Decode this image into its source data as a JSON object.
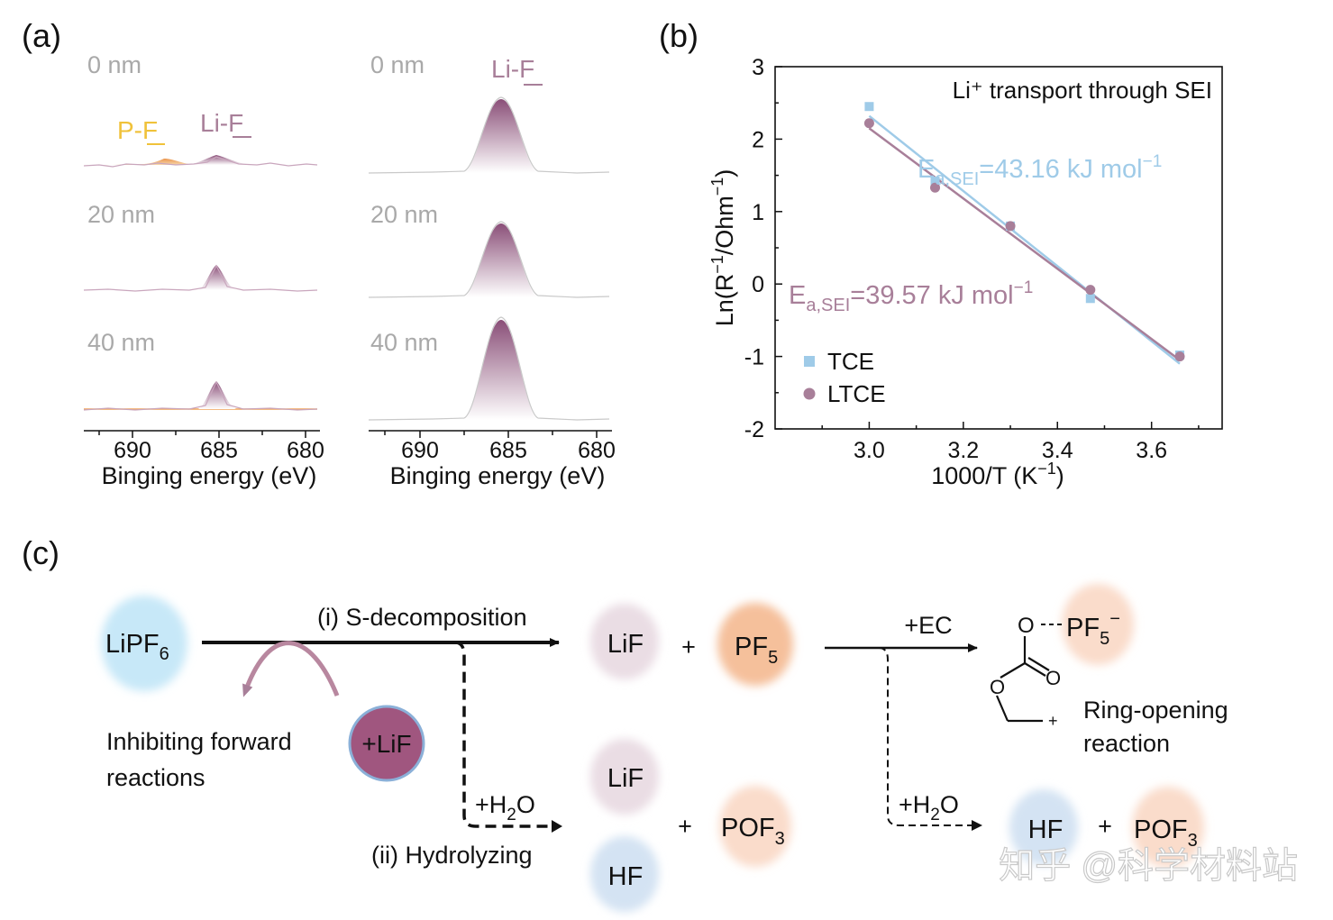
{
  "panel_a": {
    "label": "(a)",
    "left": {
      "depth_labels": [
        "0 nm",
        "20 nm",
        "40 nm"
      ],
      "peak_lif": "Li-F",
      "peak_pf": "P-F",
      "x_ticks": [
        "690",
        "685",
        "680"
      ],
      "xlabel": "Binging energy (eV)"
    },
    "right": {
      "depth_labels": [
        "0 nm",
        "20 nm",
        "40 nm"
      ],
      "peak_lif": "Li-F",
      "x_ticks": [
        "690",
        "685",
        "680"
      ],
      "xlabel": "Binging energy (eV)"
    }
  },
  "panel_b": {
    "label": "(b)",
    "title": "Li⁺ transport  through  SEI",
    "xlabel": "1000/T (K⁻¹)",
    "ylabel": "Ln(R⁻¹/Ohm⁻¹)",
    "x_ticks": [
      "3.0",
      "3.2",
      "3.4",
      "3.6"
    ],
    "y_ticks": [
      "3",
      "2",
      "1",
      "0",
      "-1",
      "-2"
    ],
    "annotation_tce": "Ea,SEI=43.16 kJ mol⁻¹",
    "annotation_ltce": "Ea,SEI=39.57 kJ mol⁻¹",
    "legend": [
      "TCE",
      "LTCE"
    ],
    "colors": {
      "tce": "#9fcbe8",
      "ltce": "#a87f99"
    }
  },
  "chart_data": [
    {
      "type": "line",
      "panel": "a-left",
      "xlabel": "Binging energy (eV)",
      "xlim": [
        693,
        678
      ],
      "x_ticks": [
        690,
        685,
        680
      ],
      "series": [
        {
          "name": "0 nm",
          "peaks": [
            {
              "label": "P-F",
              "center": 689,
              "rel_height": 0.15
            },
            {
              "label": "Li-F",
              "center": 685,
              "rel_height": 0.18
            }
          ]
        },
        {
          "name": "20 nm",
          "peaks": [
            {
              "label": "Li-F",
              "center": 685,
              "rel_height": 0.4
            }
          ]
        },
        {
          "name": "40 nm",
          "peaks": [
            {
              "label": "Li-F",
              "center": 685,
              "rel_height": 0.45
            }
          ]
        }
      ]
    },
    {
      "type": "line",
      "panel": "a-right",
      "xlabel": "Binging energy (eV)",
      "xlim": [
        693,
        678
      ],
      "x_ticks": [
        690,
        685,
        680
      ],
      "series": [
        {
          "name": "0 nm",
          "peaks": [
            {
              "label": "Li-F",
              "center": 685,
              "rel_height": 1.0
            }
          ]
        },
        {
          "name": "20 nm",
          "peaks": [
            {
              "label": "Li-F",
              "center": 685,
              "rel_height": 1.0
            }
          ]
        },
        {
          "name": "40 nm",
          "peaks": [
            {
              "label": "Li-F",
              "center": 685,
              "rel_height": 1.0
            }
          ]
        }
      ]
    },
    {
      "type": "scatter",
      "panel": "b",
      "title": "Li⁺ transport  through  SEI",
      "xlabel": "1000/T (K⁻¹)",
      "ylabel": "Ln(R⁻¹/Ohm⁻¹)",
      "xlim": [
        2.8,
        3.75
      ],
      "ylim": [
        -2,
        3
      ],
      "series": [
        {
          "name": "TCE",
          "x": [
            3.0,
            3.14,
            3.3,
            3.47,
            3.66
          ],
          "y": [
            2.45,
            1.42,
            0.8,
            -0.2,
            -0.98
          ],
          "fit": {
            "x": [
              3.0,
              3.66
            ],
            "y": [
              2.32,
              -1.1
            ]
          }
        },
        {
          "name": "LTCE",
          "x": [
            3.0,
            3.14,
            3.3,
            3.47,
            3.66
          ],
          "y": [
            2.22,
            1.33,
            0.8,
            -0.08,
            -1.0
          ],
          "fit": {
            "x": [
              3.0,
              3.66
            ],
            "y": [
              2.15,
              -1.05
            ]
          }
        }
      ]
    }
  ],
  "panel_c": {
    "label": "(c)",
    "lipf6": "LiPF6",
    "route_i": "(i) S-decomposition",
    "route_ii": "(ii) Hydrolyzing",
    "water": "+H2O",
    "ec": "+EC",
    "lif": "LiF",
    "plus": "+",
    "pf5": "PF5",
    "hf": "HF",
    "pof3": "POF3",
    "add_lif": "+LiF",
    "inhibit_line1": "Inhibiting  forward",
    "inhibit_line2": "reactions",
    "ring_line1": "Ring-opening",
    "ring_line2": "reaction",
    "ec_o": "O",
    "ec_pf5": "PF5⁻",
    "ec_plus": "+"
  },
  "watermark": "知乎 @科学材料站"
}
